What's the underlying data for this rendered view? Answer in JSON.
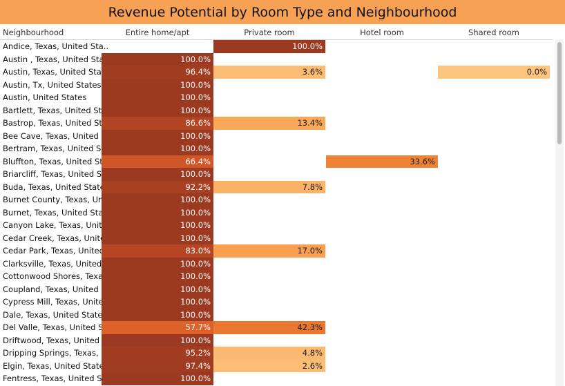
{
  "chart_data": {
    "type": "heatmap",
    "title": "Revenue Potential by Room Type and Neighbourhood",
    "row_header": "Neighbourhood",
    "columns": [
      "Entire home/apt",
      "Private room",
      "Hotel room",
      "Shared room"
    ],
    "rows": [
      {
        "label": "Andice, Texas, United Sta..",
        "values": [
          null,
          100.0,
          null,
          null
        ],
        "labels": [
          "",
          "100.0%",
          "",
          ""
        ]
      },
      {
        "label": "Austin , Texas, United Sta..",
        "values": [
          100.0,
          null,
          null,
          null
        ],
        "labels": [
          "100.0%",
          "",
          "",
          ""
        ]
      },
      {
        "label": "Austin, Texas, United Stat..",
        "values": [
          96.4,
          3.6,
          null,
          0.0
        ],
        "labels": [
          "96.4%",
          "3.6%",
          "",
          "0.0%"
        ]
      },
      {
        "label": "Austin, Tx, United States",
        "values": [
          100.0,
          null,
          null,
          null
        ],
        "labels": [
          "100.0%",
          "",
          "",
          ""
        ]
      },
      {
        "label": "Austin, United States",
        "values": [
          100.0,
          null,
          null,
          null
        ],
        "labels": [
          "100.0%",
          "",
          "",
          ""
        ]
      },
      {
        "label": "Bartlett, Texas, United St..",
        "values": [
          100.0,
          null,
          null,
          null
        ],
        "labels": [
          "100.0%",
          "",
          "",
          ""
        ]
      },
      {
        "label": "Bastrop, Texas, United St..",
        "values": [
          86.6,
          13.4,
          null,
          null
        ],
        "labels": [
          "86.6%",
          "13.4%",
          "",
          ""
        ]
      },
      {
        "label": "Bee Cave, Texas, United S..",
        "values": [
          100.0,
          null,
          null,
          null
        ],
        "labels": [
          "100.0%",
          "",
          "",
          ""
        ]
      },
      {
        "label": "Bertram, Texas, United St..",
        "values": [
          100.0,
          null,
          null,
          null
        ],
        "labels": [
          "100.0%",
          "",
          "",
          ""
        ]
      },
      {
        "label": "Bluffton, Texas, United St..",
        "values": [
          66.4,
          null,
          33.6,
          null
        ],
        "labels": [
          "66.4%",
          "",
          "33.6%",
          ""
        ]
      },
      {
        "label": "Briarcliff, Texas, United S..",
        "values": [
          100.0,
          null,
          null,
          null
        ],
        "labels": [
          "100.0%",
          "",
          "",
          ""
        ]
      },
      {
        "label": "Buda, Texas, United States",
        "values": [
          92.2,
          7.8,
          null,
          null
        ],
        "labels": [
          "92.2%",
          "7.8%",
          "",
          ""
        ]
      },
      {
        "label": "Burnet County, Texas, Uni..",
        "values": [
          100.0,
          null,
          null,
          null
        ],
        "labels": [
          "100.0%",
          "",
          "",
          ""
        ]
      },
      {
        "label": "Burnet, Texas, United Sta..",
        "values": [
          100.0,
          null,
          null,
          null
        ],
        "labels": [
          "100.0%",
          "",
          "",
          ""
        ]
      },
      {
        "label": "Canyon Lake, Texas, Unite..",
        "values": [
          100.0,
          null,
          null,
          null
        ],
        "labels": [
          "100.0%",
          "",
          "",
          ""
        ]
      },
      {
        "label": "Cedar Creek, Texas, Unite..",
        "values": [
          100.0,
          null,
          null,
          null
        ],
        "labels": [
          "100.0%",
          "",
          "",
          ""
        ]
      },
      {
        "label": "Cedar Park, Texas, United ..",
        "values": [
          83.0,
          17.0,
          null,
          null
        ],
        "labels": [
          "83.0%",
          "17.0%",
          "",
          ""
        ]
      },
      {
        "label": "Clarksville, Texas, United ..",
        "values": [
          100.0,
          null,
          null,
          null
        ],
        "labels": [
          "100.0%",
          "",
          "",
          ""
        ]
      },
      {
        "label": "Cottonwood Shores, Texa..",
        "values": [
          100.0,
          null,
          null,
          null
        ],
        "labels": [
          "100.0%",
          "",
          "",
          ""
        ]
      },
      {
        "label": "Coupland, Texas, United S..",
        "values": [
          100.0,
          null,
          null,
          null
        ],
        "labels": [
          "100.0%",
          "",
          "",
          ""
        ]
      },
      {
        "label": "Cypress Mill, Texas, Unite..",
        "values": [
          100.0,
          null,
          null,
          null
        ],
        "labels": [
          "100.0%",
          "",
          "",
          ""
        ]
      },
      {
        "label": "Dale, Texas, United States",
        "values": [
          100.0,
          null,
          null,
          null
        ],
        "labels": [
          "100.0%",
          "",
          "",
          ""
        ]
      },
      {
        "label": "Del Valle, Texas, United St..",
        "values": [
          57.7,
          42.3,
          null,
          null
        ],
        "labels": [
          "57.7%",
          "42.3%",
          "",
          ""
        ]
      },
      {
        "label": "Driftwood, Texas, United ..",
        "values": [
          100.0,
          null,
          null,
          null
        ],
        "labels": [
          "100.0%",
          "",
          "",
          ""
        ]
      },
      {
        "label": "Dripping Springs, Texas, ..",
        "values": [
          95.2,
          4.8,
          null,
          null
        ],
        "labels": [
          "95.2%",
          "4.8%",
          "",
          ""
        ]
      },
      {
        "label": "Elgin, Texas, United States",
        "values": [
          97.4,
          2.6,
          null,
          null
        ],
        "labels": [
          "97.4%",
          "2.6%",
          "",
          ""
        ]
      },
      {
        "label": "Fentress, Texas, United St..",
        "values": [
          100.0,
          null,
          null,
          null
        ],
        "labels": [
          "100.0%",
          "",
          "",
          ""
        ]
      }
    ],
    "value_format": "percent",
    "range": [
      0,
      100
    ],
    "colors": {
      "low": "#fdc47e",
      "mid_low": "#f58f3a",
      "mid": "#e0662a",
      "high": "#c24c24",
      "max": "#9c3a21"
    }
  }
}
